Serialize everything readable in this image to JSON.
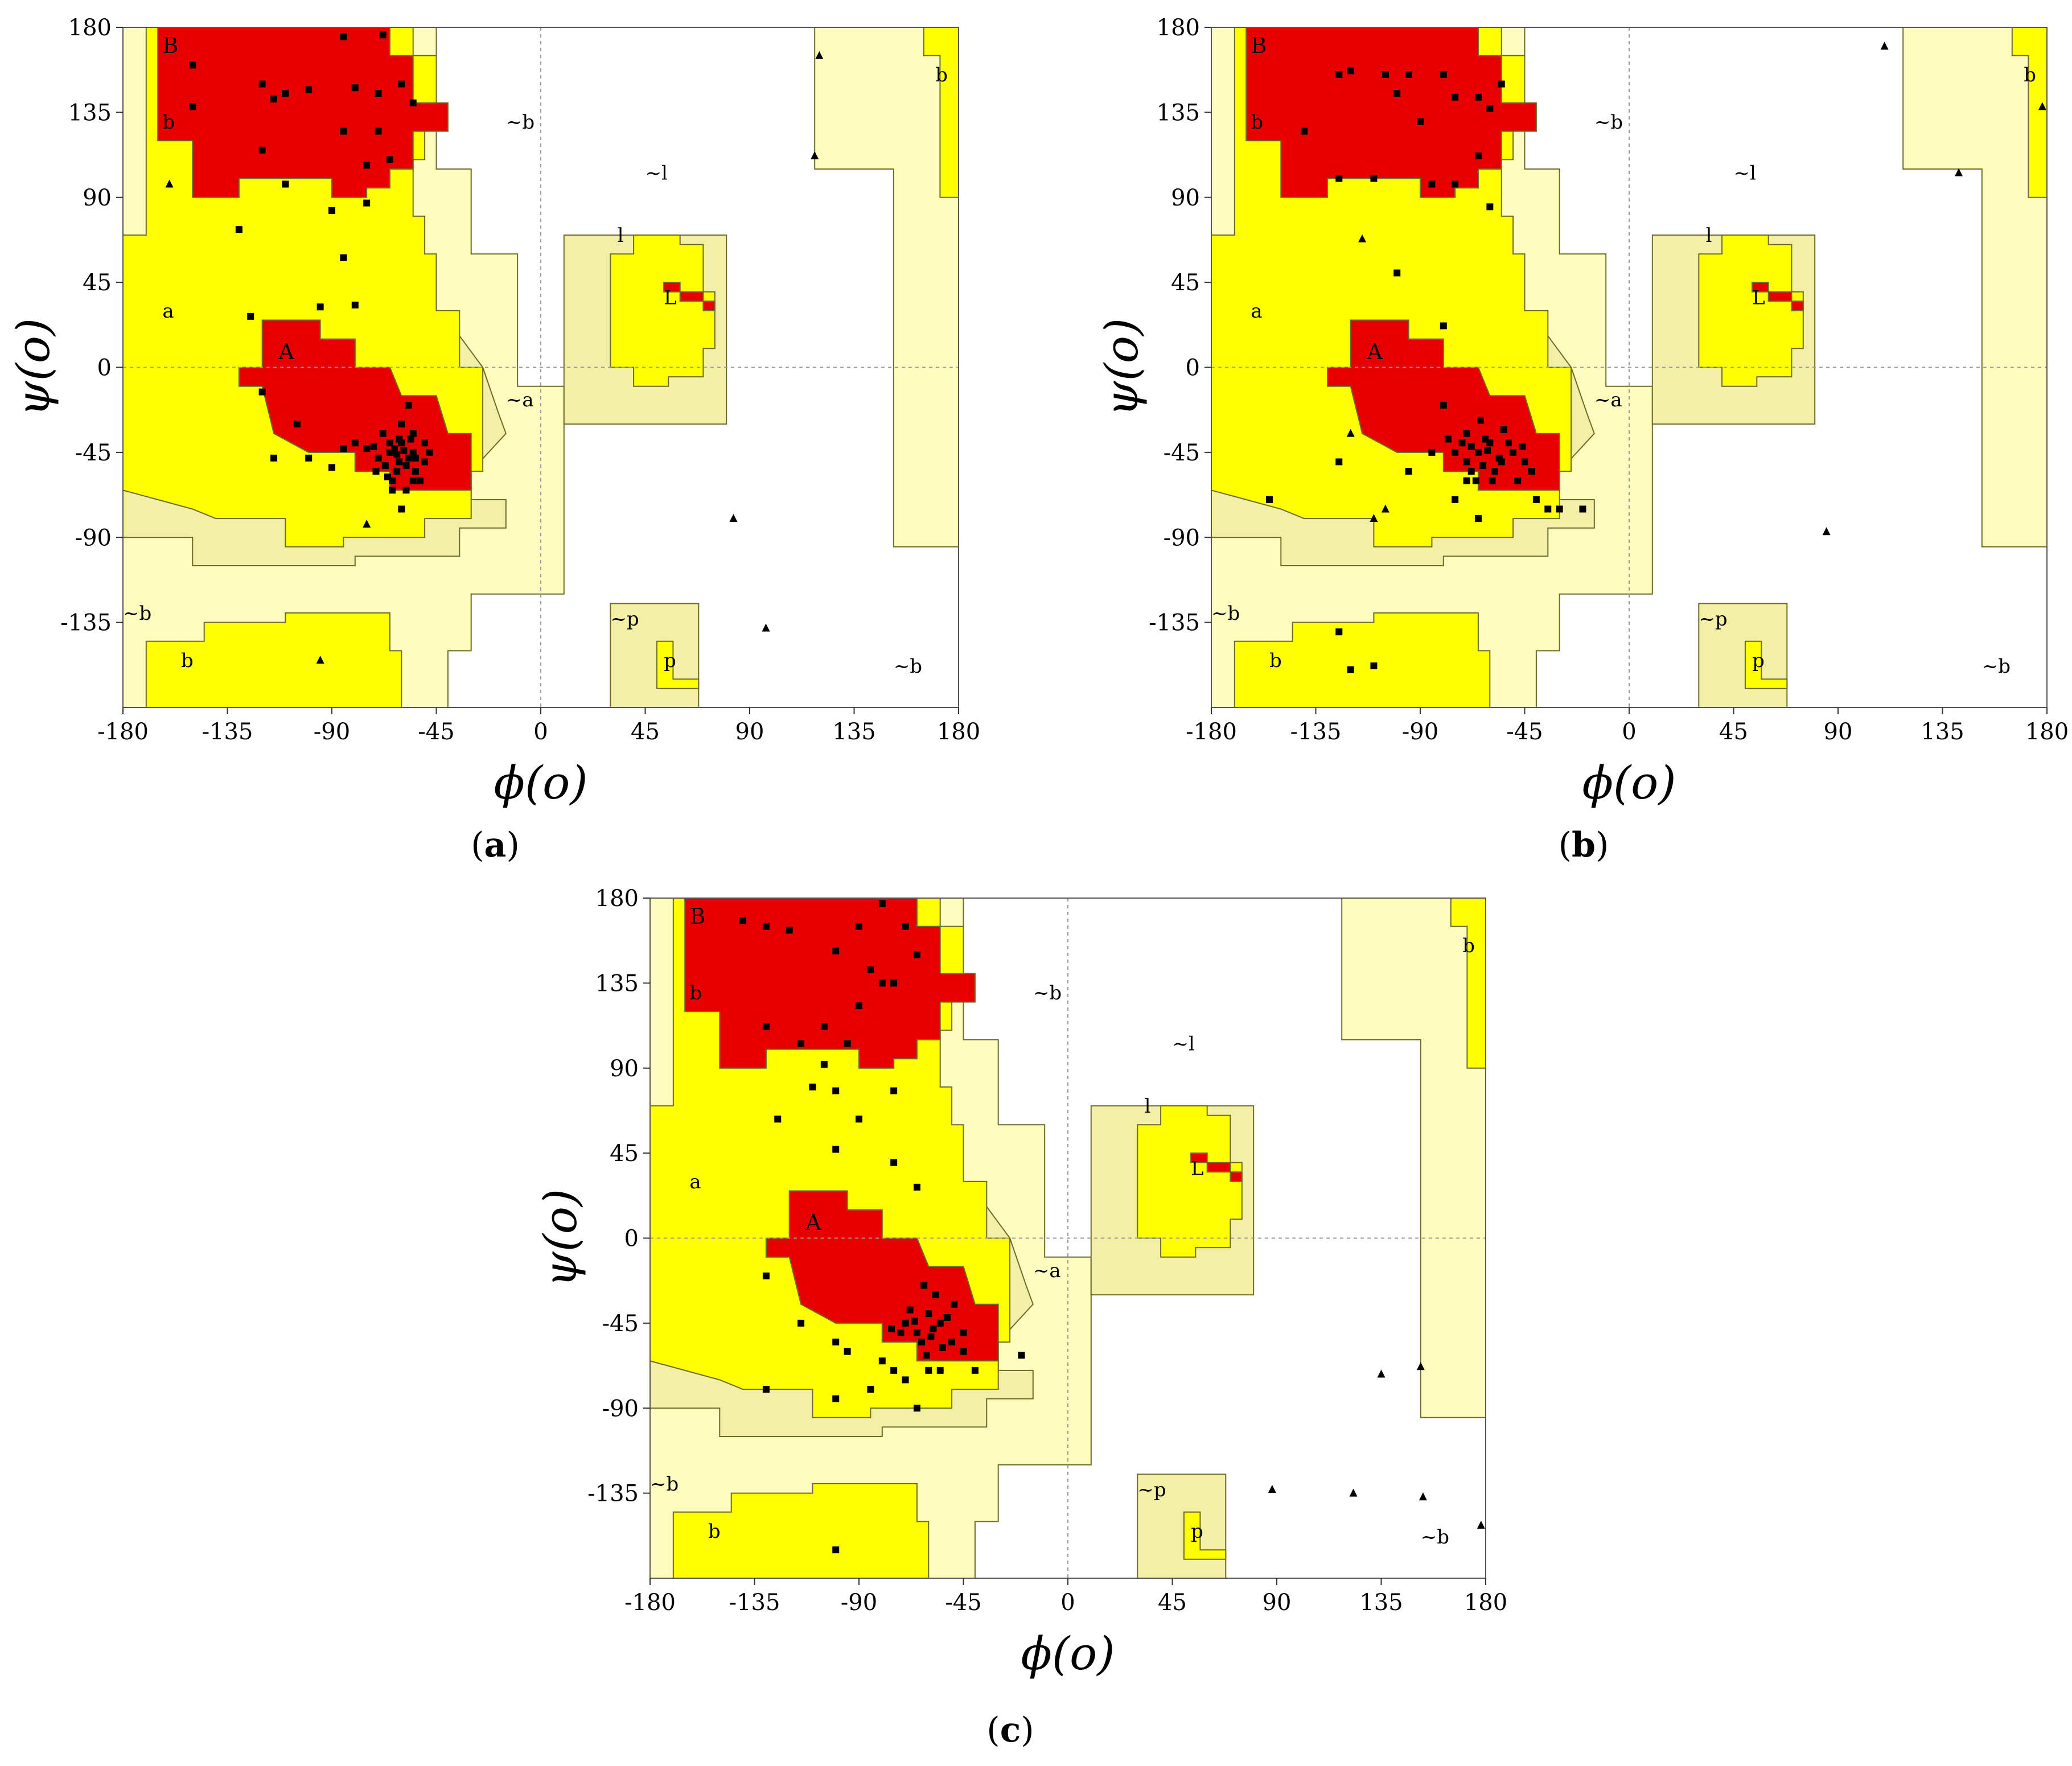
{
  "colors": {
    "core": "#e60000",
    "allowed": "#ffff00",
    "generous": "#f3efa6",
    "outer": "#fffdbe",
    "border": "#6b6b2a",
    "points": "#000000"
  },
  "chart_data": [
    {
      "type": "scatter",
      "panel": "a",
      "caption": {
        "open": "(",
        "letter": "a",
        "close": ")"
      },
      "xlabel": "ϕ(o)",
      "ylabel": "ψ(o)",
      "xlim": [
        -180,
        180
      ],
      "ylim": [
        -180,
        180
      ],
      "xticks": [
        "-180",
        "-135",
        "-90",
        "-45",
        "0",
        "45",
        "90",
        "135",
        "180"
      ],
      "yticks": [
        "180",
        "135",
        "90",
        "45",
        "0",
        "-45",
        "-90",
        "-135"
      ],
      "region_labels": [
        "B",
        "b",
        "a",
        "A",
        "~a",
        "~b",
        "~l",
        "l",
        "L",
        "~p",
        "p",
        "b",
        "~b",
        "b",
        "~b"
      ],
      "residues": [
        [
          -85,
          175
        ],
        [
          -68,
          176
        ],
        [
          -150,
          160
        ],
        [
          -120,
          150
        ],
        [
          -110,
          145
        ],
        [
          -100,
          147
        ],
        [
          -115,
          142
        ],
        [
          -80,
          148
        ],
        [
          -70,
          145
        ],
        [
          -60,
          150
        ],
        [
          -55,
          140
        ],
        [
          -150,
          138
        ],
        [
          -120,
          115
        ],
        [
          -85,
          125
        ],
        [
          -70,
          125
        ],
        [
          -65,
          110
        ],
        [
          -75,
          107
        ],
        [
          -110,
          97
        ],
        [
          -90,
          83
        ],
        [
          -75,
          87
        ],
        [
          -130,
          73
        ],
        [
          -85,
          58
        ],
        [
          -125,
          27
        ],
        [
          -95,
          32
        ],
        [
          -80,
          33
        ],
        [
          -120,
          -13
        ],
        [
          -105,
          -30
        ],
        [
          -115,
          -48
        ],
        [
          -100,
          -48
        ],
        [
          -90,
          -53
        ],
        [
          -85,
          -43
        ],
        [
          -80,
          -40
        ],
        [
          -70,
          -48
        ],
        [
          -65,
          -45
        ],
        [
          -60,
          -40
        ],
        [
          -55,
          -45
        ],
        [
          -58,
          -52
        ],
        [
          -62,
          -55
        ],
        [
          -50,
          -50
        ],
        [
          -68,
          -35
        ],
        [
          -72,
          -42
        ],
        [
          -56,
          -38
        ],
        [
          -64,
          -60
        ],
        [
          -52,
          -60
        ],
        [
          -48,
          -45
        ],
        [
          -60,
          -75
        ],
        [
          -55,
          -60
        ],
        [
          -75,
          -43
        ],
        [
          -66,
          -58
        ],
        [
          -58,
          -65
        ],
        [
          -61,
          -50
        ],
        [
          -54,
          -55
        ],
        [
          -63,
          -43
        ],
        [
          -57,
          -48
        ],
        [
          -67,
          -52
        ],
        [
          -50,
          -40
        ],
        [
          -60,
          -30
        ],
        [
          -57,
          -20
        ],
        [
          -64,
          -65
        ],
        [
          -71,
          -55
        ],
        [
          -55,
          -35
        ],
        [
          -65,
          -40
        ],
        [
          -54,
          -48
        ],
        [
          -62,
          -46
        ],
        [
          -59,
          -44
        ],
        [
          -61,
          -38
        ]
      ],
      "glycines": [
        [
          120,
          165
        ],
        [
          -160,
          97
        ],
        [
          118,
          112
        ],
        [
          -75,
          -83
        ],
        [
          -95,
          -155
        ],
        [
          83,
          -80
        ],
        [
          97,
          -138
        ]
      ]
    },
    {
      "type": "scatter",
      "panel": "b",
      "caption": {
        "open": "(",
        "letter": "b",
        "close": ")"
      },
      "xlabel": "ϕ(o)",
      "ylabel": "ψ(o)",
      "xlim": [
        -180,
        180
      ],
      "ylim": [
        -180,
        180
      ],
      "xticks": [
        "-180",
        "-135",
        "-90",
        "-45",
        "0",
        "45",
        "90",
        "135",
        "180"
      ],
      "yticks": [
        "180",
        "135",
        "90",
        "45",
        "0",
        "-45",
        "-90",
        "-135"
      ],
      "region_labels": [
        "B",
        "b",
        "a",
        "A",
        "~a",
        "~b",
        "~l",
        "l",
        "L",
        "~p",
        "p",
        "b",
        "~b",
        "b",
        "~b"
      ],
      "residues": [
        [
          -120,
          157
        ],
        [
          -125,
          155
        ],
        [
          -105,
          155
        ],
        [
          -95,
          155
        ],
        [
          -80,
          155
        ],
        [
          -55,
          150
        ],
        [
          -100,
          145
        ],
        [
          -75,
          143
        ],
        [
          -65,
          143
        ],
        [
          -140,
          125
        ],
        [
          -90,
          130
        ],
        [
          -60,
          137
        ],
        [
          -110,
          100
        ],
        [
          -125,
          100
        ],
        [
          -85,
          97
        ],
        [
          -75,
          97
        ],
        [
          -65,
          112
        ],
        [
          -60,
          85
        ],
        [
          -100,
          50
        ],
        [
          -80,
          22
        ],
        [
          -155,
          -70
        ],
        [
          -125,
          -50
        ],
        [
          -95,
          -55
        ],
        [
          -85,
          -45
        ],
        [
          -75,
          -70
        ],
        [
          -65,
          -80
        ],
        [
          -80,
          -20
        ],
        [
          -70,
          -35
        ],
        [
          -60,
          -40
        ],
        [
          -65,
          -45
        ],
        [
          -55,
          -50
        ],
        [
          -50,
          -45
        ],
        [
          -45,
          -50
        ],
        [
          -75,
          -45
        ],
        [
          -70,
          -50
        ],
        [
          -68,
          -42
        ],
        [
          -62,
          -38
        ],
        [
          -58,
          -55
        ],
        [
          -52,
          -40
        ],
        [
          -48,
          -60
        ],
        [
          -42,
          -55
        ],
        [
          -40,
          -70
        ],
        [
          -35,
          -75
        ],
        [
          -30,
          -75
        ],
        [
          -20,
          -75
        ],
        [
          -125,
          -140
        ],
        [
          -120,
          -160
        ],
        [
          -110,
          -158
        ],
        [
          -68,
          -55
        ],
        [
          -72,
          -40
        ],
        [
          -56,
          -48
        ],
        [
          -63,
          -52
        ],
        [
          -66,
          -60
        ],
        [
          -61,
          -44
        ],
        [
          -54,
          -33
        ],
        [
          -78,
          -38
        ],
        [
          -46,
          -42
        ],
        [
          -59,
          -60
        ],
        [
          -64,
          -28
        ],
        [
          -70,
          -60
        ]
      ],
      "glycines": [
        [
          -120,
          -35
        ],
        [
          -105,
          -75
        ],
        [
          -110,
          -80
        ],
        [
          -115,
          68
        ],
        [
          110,
          170
        ],
        [
          142,
          103
        ],
        [
          85,
          -87
        ],
        [
          178,
          138
        ]
      ]
    },
    {
      "type": "scatter",
      "panel": "c",
      "caption": {
        "open": "(",
        "letter": "c",
        "close": ")"
      },
      "xlabel": "ϕ(o)",
      "ylabel": "ψ(o)",
      "xlim": [
        -180,
        180
      ],
      "ylim": [
        -180,
        180
      ],
      "xticks": [
        "-180",
        "-135",
        "-90",
        "-45",
        "0",
        "45",
        "90",
        "135",
        "180"
      ],
      "yticks": [
        "180",
        "135",
        "90",
        "45",
        "0",
        "-45",
        "-90",
        "-135"
      ],
      "region_labels": [
        "B",
        "b",
        "a",
        "A",
        "~a",
        "~b",
        "~l",
        "l",
        "L",
        "~p",
        "p",
        "b",
        "~b",
        "b",
        "~b"
      ],
      "residues": [
        [
          -80,
          177
        ],
        [
          -140,
          168
        ],
        [
          -130,
          165
        ],
        [
          -120,
          163
        ],
        [
          -90,
          165
        ],
        [
          -70,
          165
        ],
        [
          -65,
          150
        ],
        [
          -100,
          152
        ],
        [
          -85,
          142
        ],
        [
          -75,
          135
        ],
        [
          -80,
          135
        ],
        [
          -90,
          123
        ],
        [
          -130,
          112
        ],
        [
          -105,
          112
        ],
        [
          -115,
          103
        ],
        [
          -95,
          103
        ],
        [
          -105,
          92
        ],
        [
          -110,
          80
        ],
        [
          -100,
          78
        ],
        [
          -75,
          78
        ],
        [
          -125,
          63
        ],
        [
          -90,
          63
        ],
        [
          -100,
          47
        ],
        [
          -75,
          40
        ],
        [
          -65,
          27
        ],
        [
          -130,
          -20
        ],
        [
          -115,
          -45
        ],
        [
          -100,
          -55
        ],
        [
          -95,
          -60
        ],
        [
          -80,
          -65
        ],
        [
          -70,
          -45
        ],
        [
          -60,
          -40
        ],
        [
          -65,
          -50
        ],
        [
          -55,
          -45
        ],
        [
          -50,
          -55
        ],
        [
          -45,
          -50
        ],
        [
          -60,
          -70
        ],
        [
          -70,
          -75
        ],
        [
          -75,
          -70
        ],
        [
          -85,
          -80
        ],
        [
          -100,
          -85
        ],
        [
          -130,
          -80
        ],
        [
          -65,
          -90
        ],
        [
          -55,
          -70
        ],
        [
          -45,
          -60
        ],
        [
          -40,
          -70
        ],
        [
          -20,
          -62
        ],
        [
          -100,
          -165
        ],
        [
          -58,
          -48
        ],
        [
          -63,
          -55
        ],
        [
          -52,
          -42
        ],
        [
          -68,
          -38
        ],
        [
          -72,
          -50
        ],
        [
          -57,
          -30
        ],
        [
          -61,
          -62
        ],
        [
          -66,
          -44
        ],
        [
          -54,
          -58
        ],
        [
          -49,
          -35
        ],
        [
          -76,
          -48
        ],
        [
          -59,
          -52
        ],
        [
          -62,
          -25
        ]
      ],
      "glycines": [
        [
          88,
          -133
        ],
        [
          123,
          -135
        ],
        [
          135,
          -72
        ],
        [
          152,
          -68
        ],
        [
          153,
          -137
        ],
        [
          178,
          -152
        ]
      ]
    }
  ]
}
